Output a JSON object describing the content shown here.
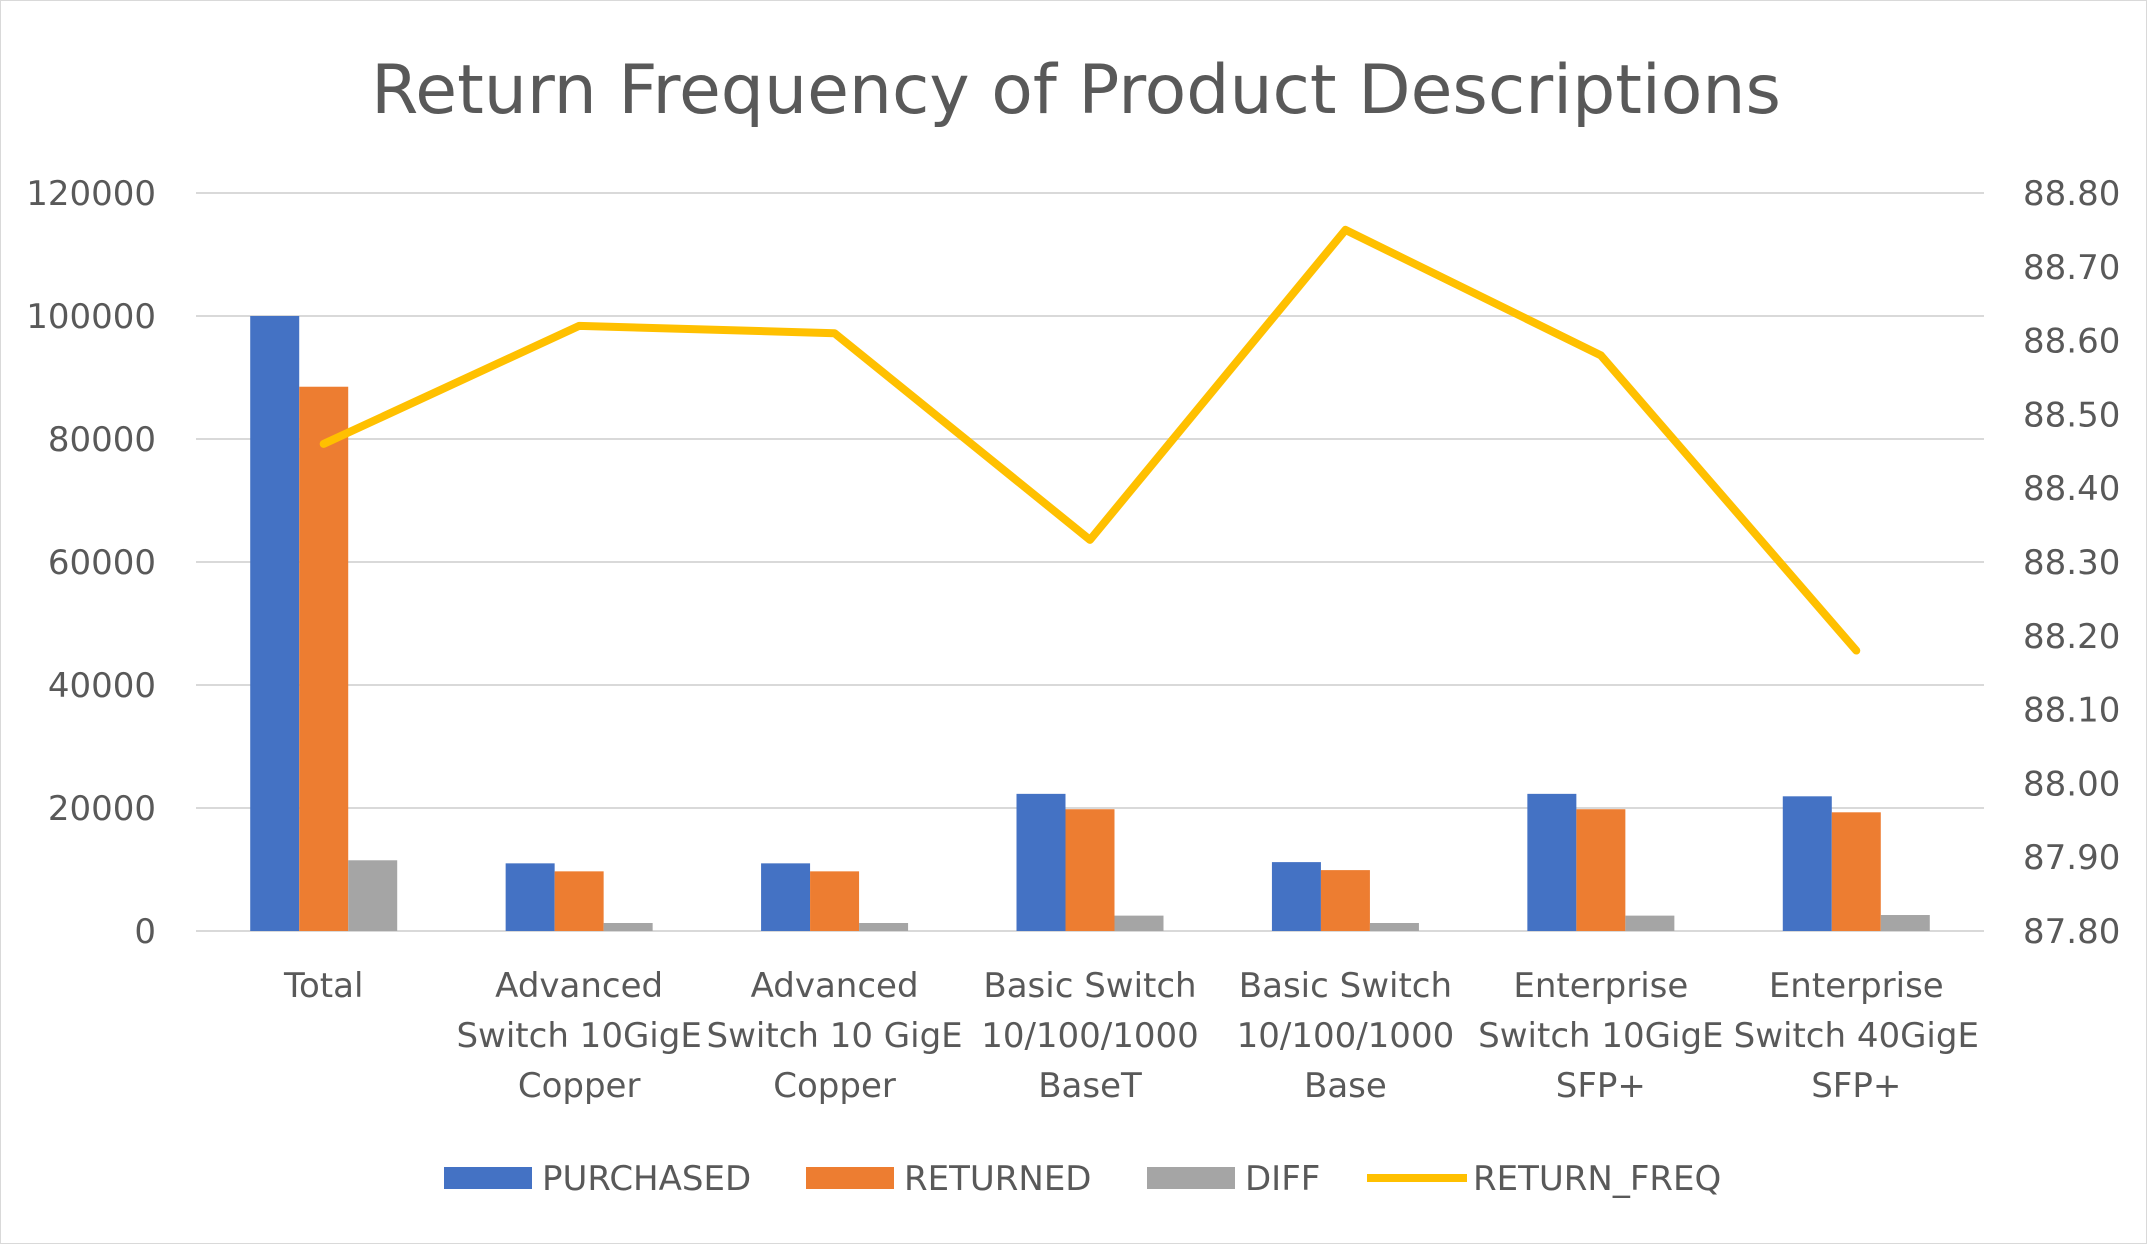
{
  "chart_data": {
    "type": "bar",
    "title": "Return Frequency of Product Descriptions",
    "xlabel": "",
    "ylabel": "",
    "categories": [
      [
        "Total"
      ],
      [
        "Advanced",
        "Switch 10GigE",
        "Copper"
      ],
      [
        "Advanced",
        "Switch 10 GigE",
        "Copper"
      ],
      [
        "Basic Switch",
        "10/100/1000",
        "BaseT"
      ],
      [
        "Basic Switch",
        "10/100/1000",
        "Base"
      ],
      [
        "Enterprise",
        "Switch 10GigE",
        "SFP+"
      ],
      [
        "Enterprise",
        "Switch 40GigE",
        "SFP+"
      ]
    ],
    "series": [
      {
        "name": "PURCHASED",
        "type": "bar",
        "axis": "left",
        "color": "#4472C4",
        "values": [
          100000,
          11000,
          11000,
          22300,
          11200,
          22300,
          21900
        ]
      },
      {
        "name": "RETURNED",
        "type": "bar",
        "axis": "left",
        "color": "#ED7D31",
        "values": [
          88500,
          9700,
          9700,
          19800,
          9900,
          19800,
          19300
        ]
      },
      {
        "name": "DIFF",
        "type": "bar",
        "axis": "left",
        "color": "#A5A5A5",
        "values": [
          11500,
          1300,
          1300,
          2500,
          1300,
          2500,
          2600
        ]
      },
      {
        "name": "RETURN_FREQ",
        "type": "line",
        "axis": "right",
        "color": "#FFC000",
        "values": [
          88.46,
          88.62,
          88.61,
          88.33,
          88.75,
          88.58,
          88.18
        ]
      }
    ],
    "y_left": {
      "min": 0,
      "max": 120000,
      "ticks": [
        "0",
        "20000",
        "40000",
        "60000",
        "80000",
        "100000",
        "120000"
      ]
    },
    "y_right": {
      "min": 87.8,
      "max": 88.8,
      "ticks": [
        "87.80",
        "87.90",
        "88.00",
        "88.10",
        "88.20",
        "88.30",
        "88.40",
        "88.50",
        "88.60",
        "88.70",
        "88.80"
      ]
    },
    "grid": true,
    "legend_position": "bottom"
  }
}
